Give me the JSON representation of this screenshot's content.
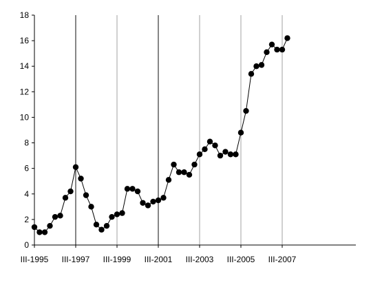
{
  "chart_data": {
    "type": "line",
    "title": "",
    "xlabel": "",
    "ylabel": "",
    "ylim": [
      0,
      18
    ],
    "y_ticks": [
      0,
      2,
      4,
      6,
      8,
      10,
      12,
      14,
      16,
      18
    ],
    "x_tick_labels": [
      "III-1995",
      "III-1997",
      "III-1999",
      "III-2001",
      "III-2003",
      "III-2005",
      "III-2007"
    ],
    "vertical_lines_at": [
      "III-1997",
      "III-1999",
      "III-2001",
      "III-2003",
      "III-2005",
      "III-2007"
    ],
    "bold_vertical_lines_at": [
      "III-1997",
      "III-2001"
    ],
    "grid": false,
    "legend": "none",
    "series": [
      {
        "x": [
          "III-1995",
          "IV-1995",
          "I-1996",
          "II-1996",
          "III-1996",
          "IV-1996",
          "I-1997",
          "II-1997",
          "III-1997",
          "IV-1997",
          "I-1998",
          "II-1998",
          "III-1998",
          "IV-1998",
          "I-1999",
          "II-1999",
          "III-1999",
          "IV-1999",
          "I-2000",
          "II-2000",
          "III-2000",
          "IV-2000",
          "I-2001",
          "II-2001",
          "III-2001",
          "IV-2001",
          "I-2002",
          "II-2002",
          "III-2002",
          "IV-2002",
          "I-2003",
          "II-2003",
          "III-2003",
          "IV-2003",
          "I-2004",
          "II-2004",
          "III-2004",
          "IV-2004",
          "I-2005",
          "II-2005",
          "III-2005",
          "IV-2005",
          "I-2006",
          "II-2006",
          "III-2006",
          "IV-2006",
          "I-2007",
          "II-2007",
          "III-2007",
          "IV-2007"
        ],
        "values": [
          1.4,
          1.0,
          1.0,
          1.5,
          2.2,
          2.3,
          3.7,
          4.2,
          6.1,
          5.2,
          3.9,
          3.0,
          1.6,
          1.2,
          1.5,
          2.2,
          2.4,
          2.5,
          4.4,
          4.4,
          4.2,
          3.3,
          3.1,
          3.4,
          3.5,
          3.7,
          5.1,
          6.3,
          5.7,
          5.7,
          5.5,
          6.3,
          7.1,
          7.5,
          8.1,
          7.8,
          7.0,
          7.3,
          7.1,
          7.1,
          8.8,
          10.5,
          13.4,
          14.0,
          14.1,
          15.1,
          15.7,
          15.3,
          15.3,
          16.2
        ],
        "color": "#000000"
      }
    ]
  }
}
